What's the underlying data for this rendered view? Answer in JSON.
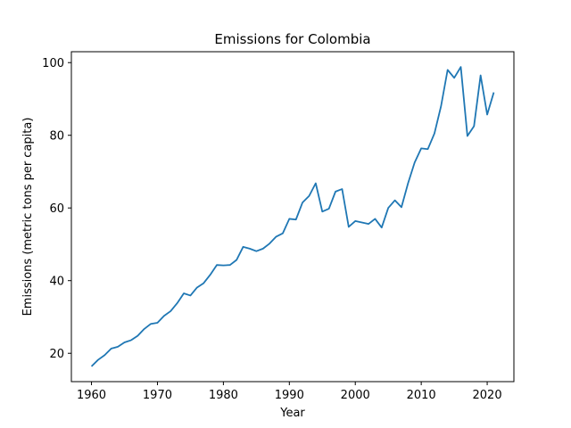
{
  "chart_data": {
    "type": "line",
    "title": "Emissions for Colombia",
    "xlabel": "Year",
    "ylabel": "Emissions (metric tons per capita)",
    "xlim": [
      1956.95,
      2024.05
    ],
    "ylim": [
      12.2,
      103.0
    ],
    "xticks": [
      1960,
      1970,
      1980,
      1990,
      2000,
      2010,
      2020
    ],
    "yticks": [
      20,
      40,
      60,
      80,
      100
    ],
    "grid": false,
    "color": "#1f77b4",
    "series": [
      {
        "name": "Colombia",
        "x": [
          1960,
          1961,
          1962,
          1963,
          1964,
          1965,
          1966,
          1967,
          1968,
          1969,
          1970,
          1971,
          1972,
          1973,
          1974,
          1975,
          1976,
          1977,
          1978,
          1979,
          1980,
          1981,
          1982,
          1983,
          1984,
          1985,
          1986,
          1987,
          1988,
          1989,
          1990,
          1991,
          1992,
          1993,
          1994,
          1995,
          1996,
          1997,
          1998,
          1999,
          2000,
          2001,
          2002,
          2003,
          2004,
          2005,
          2006,
          2007,
          2008,
          2009,
          2010,
          2011,
          2012,
          2013,
          2014,
          2015,
          2016,
          2017,
          2018,
          2019,
          2020,
          2021
        ],
        "values": [
          16.4,
          18.2,
          19.5,
          21.3,
          21.8,
          23.0,
          23.6,
          24.8,
          26.7,
          28.1,
          28.4,
          30.3,
          31.6,
          33.8,
          36.5,
          35.9,
          38.1,
          39.3,
          41.6,
          44.3,
          44.2,
          44.3,
          45.7,
          49.3,
          48.8,
          48.1,
          48.8,
          50.2,
          52.1,
          53.0,
          57.0,
          56.8,
          61.5,
          63.3,
          66.8,
          59.0,
          59.8,
          64.5,
          65.2,
          54.8,
          56.4,
          56.0,
          55.6,
          57.0,
          54.6,
          60.0,
          62.1,
          60.2,
          66.8,
          72.5,
          76.4,
          76.2,
          80.5,
          88.0,
          98.0,
          95.8,
          98.8,
          79.8,
          82.5,
          96.5,
          85.7,
          91.8
        ]
      }
    ]
  }
}
